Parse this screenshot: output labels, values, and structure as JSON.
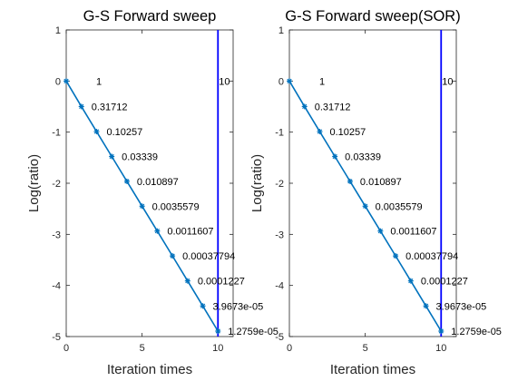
{
  "colors": {
    "series_line": "#0072BD",
    "marker_line": "#0000FF",
    "axis": "#262626",
    "background": "#FFFFFF"
  },
  "chart_data": [
    {
      "type": "line",
      "title": "G-S Forward sweep",
      "xlabel": "Iteration times",
      "ylabel": "Log(ratio)",
      "xlim": [
        0,
        11
      ],
      "ylim": [
        -5,
        1
      ],
      "xticks": [
        "0",
        "5",
        "10"
      ],
      "yticks": [
        "1",
        "0",
        "-1",
        "-2",
        "-3",
        "-4",
        "-5"
      ],
      "grid": false,
      "series": [
        {
          "x": [
            0,
            1,
            2,
            3,
            4,
            5,
            6,
            7,
            8,
            9,
            10
          ],
          "values": [
            0,
            -0.4988,
            -0.989,
            -1.4764,
            -1.9628,
            -2.4488,
            -2.9352,
            -3.4226,
            -3.9112,
            -4.4015,
            -4.8939
          ]
        }
      ],
      "vline": {
        "x": 10,
        "label": "10"
      },
      "data_labels": [
        "1",
        "0.31712",
        "0.10257",
        "0.03339",
        "0.010897",
        "0.0035579",
        "0.0011607",
        "0.00037794",
        "0.0001227",
        "3.9673e-05",
        "1.2759e-05"
      ]
    },
    {
      "type": "line",
      "title": "G-S Forward sweep(SOR)",
      "xlabel": "Iteration times",
      "ylabel": "Log(ratio)",
      "xlim": [
        0,
        11
      ],
      "ylim": [
        -5,
        1
      ],
      "xticks": [
        "0",
        "5",
        "10"
      ],
      "yticks": [
        "1",
        "0",
        "-1",
        "-2",
        "-3",
        "-4",
        "-5"
      ],
      "grid": false,
      "series": [
        {
          "x": [
            0,
            1,
            2,
            3,
            4,
            5,
            6,
            7,
            8,
            9,
            10
          ],
          "values": [
            0,
            -0.4988,
            -0.989,
            -1.4764,
            -1.9628,
            -2.4488,
            -2.9352,
            -3.4226,
            -3.9112,
            -4.4015,
            -4.8939
          ]
        }
      ],
      "vline": {
        "x": 10,
        "label": "10"
      },
      "data_labels": [
        "1",
        "0.31712",
        "0.10257",
        "0.03339",
        "0.010897",
        "0.0035579",
        "0.0011607",
        "0.00037794",
        "0.0001227",
        "3.9673e-05",
        "1.2759e-05"
      ]
    }
  ]
}
